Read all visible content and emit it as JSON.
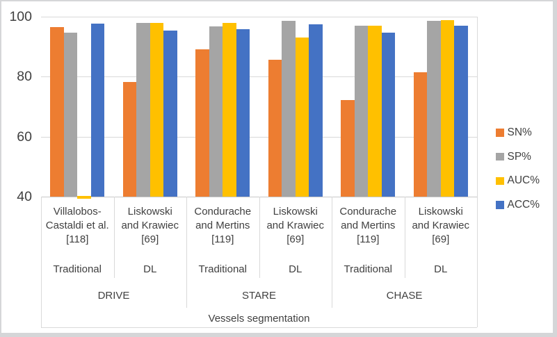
{
  "chart_data": {
    "type": "bar",
    "title": "Vessels segmentation",
    "ylim": [
      40,
      100
    ],
    "yticks": [
      100,
      80,
      60,
      40
    ],
    "ytick_labels": [
      "100",
      "80",
      "60",
      "40"
    ],
    "grid": true,
    "legend_position": "right",
    "datasets": [
      "DRIVE",
      "STARE",
      "CHASE"
    ],
    "groups": [
      {
        "method": "Villalobos-\nCastaldi et al.\n[118]",
        "approach": "Traditional",
        "dataset": "DRIVE"
      },
      {
        "method": "Liskowski\nand Krawiec\n[69]",
        "approach": "DL",
        "dataset": "DRIVE"
      },
      {
        "method": "Condurache\nand Mertins\n[119]",
        "approach": "Traditional",
        "dataset": "STARE"
      },
      {
        "method": "Liskowski\nand Krawiec\n[69]",
        "approach": "DL",
        "dataset": "STARE"
      },
      {
        "method": "Condurache\nand Mertins\n[119]",
        "approach": "Traditional",
        "dataset": "CHASE"
      },
      {
        "method": "Liskowski\nand Krawiec\n[69]",
        "approach": "DL",
        "dataset": "CHASE"
      }
    ],
    "series": [
      {
        "name": "SN%",
        "color": "#ED7D31",
        "values": [
          96.5,
          78.2,
          89.1,
          85.6,
          72.2,
          81.5
        ]
      },
      {
        "name": "SP%",
        "color": "#A5A5A5",
        "values": [
          94.7,
          97.9,
          96.7,
          98.6,
          97.0,
          98.6
        ]
      },
      {
        "name": "AUC%",
        "color": "#FFC000",
        "values": [
          0.98,
          98.0,
          98.0,
          93.0,
          97.0,
          98.9
        ]
      },
      {
        "name": "ACC%",
        "color": "#4472C4",
        "values": [
          97.6,
          95.4,
          95.9,
          97.4,
          94.6,
          96.9
        ]
      }
    ],
    "clipped_note": "AUC bar of group 1 is plotted below the 40 axis minimum (tiny sliver at baseline)"
  }
}
